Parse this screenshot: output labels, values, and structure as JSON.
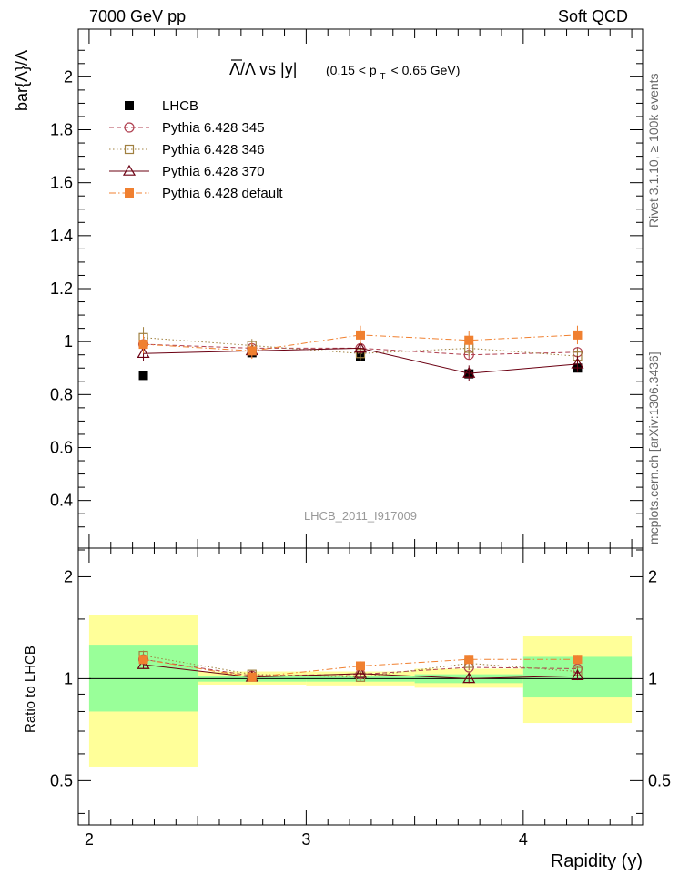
{
  "header": {
    "left": "7000 GeV pp",
    "right": "Soft QCD"
  },
  "side_labels": {
    "top": "Rivet 3.1.10, ≥ 100k events",
    "bottom": "mcplots.cern.ch [arXiv:1306.3436]"
  },
  "chart_data": [
    {
      "type": "scatter",
      "panel": "main",
      "title": "Λ̄/Λ vs |y| (0.15 < p_T < 0.65 GeV)",
      "title_main": "Λ/Λ vs |y|",
      "title_cut": "(0.15 < p  < 0.65 GeV)",
      "title_cut_parts": [
        "(0.15 < p",
        "T",
        "< 0.65 GeV)"
      ],
      "ylabel": "bar{Λ}/Λ",
      "xlim": [
        1.95,
        4.55
      ],
      "ylim": [
        0.22,
        2.18
      ],
      "y_ticks": [
        0.4,
        0.6,
        0.8,
        1,
        1.2,
        1.4,
        1.6,
        1.8,
        2
      ],
      "y_tick_labels": [
        "0.4",
        "0.6",
        "0.8",
        "1",
        "1.2",
        "1.4",
        "1.6",
        "1.8",
        "2"
      ],
      "annotation": "LHCB_2011_I917009",
      "x": [
        2.25,
        2.75,
        3.25,
        3.75,
        4.25
      ],
      "series": [
        {
          "name": "LHCB",
          "color": "#000000",
          "marker": "square-filled",
          "line": "none",
          "values": [
            0.872,
            0.958,
            0.943,
            0.878,
            0.9
          ],
          "errors": [
            0.008,
            0.01,
            0.012,
            0.012,
            0.012
          ]
        },
        {
          "name": "Pythia 6.428 345",
          "color": "#b04050",
          "marker": "circle-open",
          "line": "dashed",
          "values": [
            0.99,
            0.975,
            0.975,
            0.95,
            0.96
          ],
          "errors": [
            0.015,
            0.012,
            0.015,
            0.018,
            0.02
          ]
        },
        {
          "name": "Pythia 6.428 346",
          "color": "#a08040",
          "marker": "square-open",
          "line": "dotted",
          "values": [
            1.015,
            0.985,
            0.955,
            0.975,
            0.945
          ],
          "errors": [
            0.04,
            0.025,
            0.025,
            0.03,
            0.03
          ]
        },
        {
          "name": "Pythia 6.428 370",
          "color": "#6b0012",
          "marker": "triangle-open",
          "line": "solid",
          "values": [
            0.955,
            0.965,
            0.975,
            0.88,
            0.915
          ],
          "errors": [
            0.03,
            0.025,
            0.02,
            0.03,
            0.03
          ]
        },
        {
          "name": "Pythia 6.428 default",
          "color": "#f08030",
          "marker": "square-filled",
          "line": "dashdot",
          "values": [
            0.99,
            0.965,
            1.025,
            1.005,
            1.025
          ],
          "errors": [
            0.035,
            0.03,
            0.035,
            0.035,
            0.035
          ]
        }
      ]
    },
    {
      "type": "scatter",
      "panel": "ratio",
      "ylabel": "Ratio to LHCB",
      "xlabel": "Rapidity (y)",
      "xlim": [
        1.95,
        4.55
      ],
      "ylim": [
        0.37,
        2.43
      ],
      "y_scale": "log",
      "x_ticks": [
        2,
        3,
        4
      ],
      "x_tick_labels": [
        "2",
        "3",
        "4"
      ],
      "y_ticks": [
        0.5,
        1,
        2
      ],
      "y_tick_labels": [
        "0.5",
        "1",
        "2"
      ],
      "bands": [
        {
          "x_range": [
            2.0,
            2.5
          ],
          "yellow": [
            0.55,
            1.54
          ],
          "green": [
            0.8,
            1.26
          ]
        },
        {
          "x_range": [
            2.5,
            3.0
          ],
          "yellow": [
            0.96,
            1.05
          ],
          "green": [
            0.98,
            1.02
          ]
        },
        {
          "x_range": [
            3.0,
            3.5
          ],
          "yellow": [
            0.955,
            1.05
          ],
          "green": [
            0.98,
            1.02
          ]
        },
        {
          "x_range": [
            3.5,
            4.0
          ],
          "yellow": [
            0.94,
            1.07
          ],
          "green": [
            0.97,
            1.03
          ]
        },
        {
          "x_range": [
            4.0,
            4.5
          ],
          "yellow": [
            0.74,
            1.34
          ],
          "green": [
            0.88,
            1.16
          ]
        }
      ],
      "x": [
        2.25,
        2.75,
        3.25,
        3.75,
        4.25
      ],
      "series": [
        {
          "name": "Pythia 6.428 345",
          "color": "#b04050",
          "marker": "circle-open",
          "line": "dashed",
          "values": [
            1.14,
            1.02,
            1.03,
            1.08,
            1.07
          ],
          "errors": [
            0.02,
            0.015,
            0.02,
            0.02,
            0.02
          ]
        },
        {
          "name": "Pythia 6.428 346",
          "color": "#a08040",
          "marker": "square-open",
          "line": "dotted",
          "values": [
            1.17,
            1.03,
            1.01,
            1.11,
            1.05
          ],
          "errors": [
            0.04,
            0.025,
            0.025,
            0.035,
            0.03
          ]
        },
        {
          "name": "Pythia 6.428 370",
          "color": "#6b0012",
          "marker": "triangle-open",
          "line": "solid",
          "values": [
            1.1,
            1.01,
            1.035,
            1.0,
            1.02
          ],
          "errors": [
            0.03,
            0.025,
            0.02,
            0.03,
            0.03
          ]
        },
        {
          "name": "Pythia 6.428 default",
          "color": "#f08030",
          "marker": "square-filled",
          "line": "dashdot",
          "values": [
            1.14,
            1.01,
            1.09,
            1.14,
            1.14
          ],
          "errors": [
            0.035,
            0.03,
            0.035,
            0.035,
            0.035
          ]
        }
      ]
    }
  ]
}
